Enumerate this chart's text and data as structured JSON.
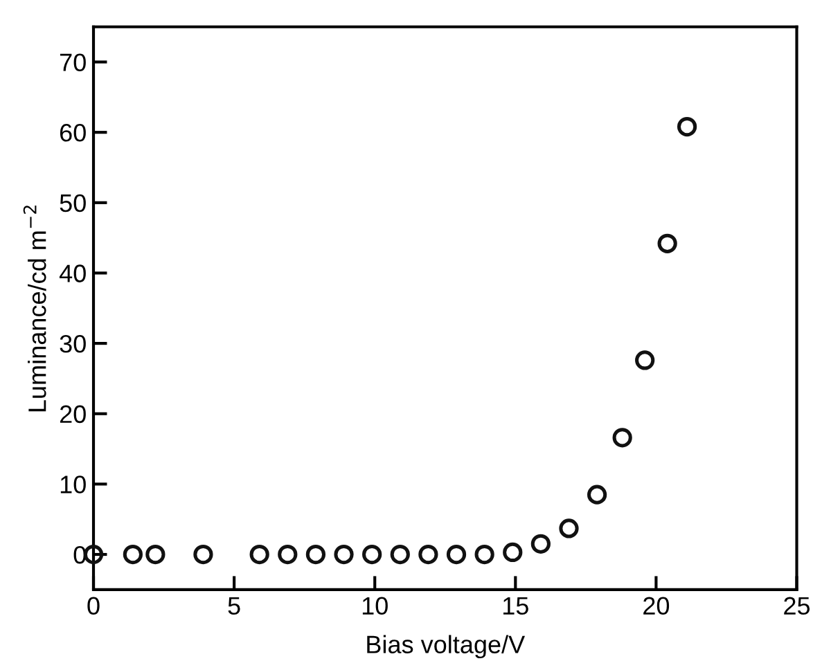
{
  "chart_data": {
    "type": "scatter",
    "xlabel": "Bias voltage/V",
    "ylabel": "Luminance/cd m$^{−2}$",
    "x": [
      0,
      1.4,
      2.2,
      3.9,
      5.9,
      6.9,
      7.9,
      8.9,
      9.9,
      10.9,
      11.9,
      12.9,
      13.9,
      14.9,
      15.9,
      16.9,
      17.9,
      18.8,
      19.6,
      20.4,
      21.1
    ],
    "series": [
      {
        "color": "#111111",
        "values": [
          0,
          0,
          0,
          0,
          0,
          0,
          0,
          0,
          0,
          0,
          0,
          0,
          0,
          0.3,
          1.5,
          3.7,
          8.5,
          16.6,
          27.6,
          44.2,
          60.8
        ]
      }
    ],
    "marker": "circle",
    "xlim": [
      0,
      25
    ],
    "ylim": [
      -5,
      75
    ],
    "xticks": [
      0,
      5,
      10,
      15,
      20,
      25
    ],
    "yticks": [
      0,
      10,
      20,
      30,
      40,
      50,
      60,
      70
    ],
    "grid": false,
    "legend": false
  }
}
